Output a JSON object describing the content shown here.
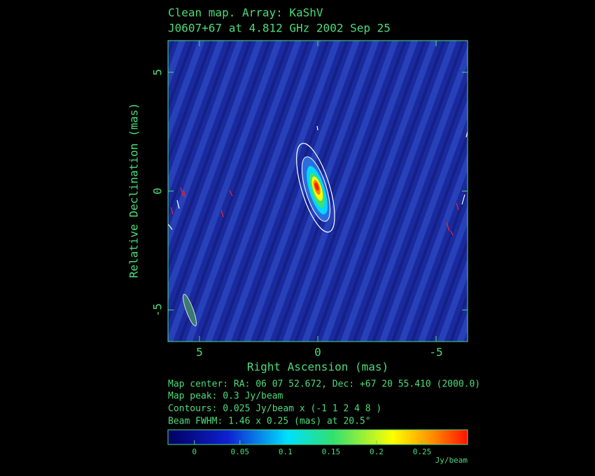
{
  "chart_data": {
    "type": "image",
    "title": [
      "Clean map.  Array: KaShV",
      "J0607+67 at 4.812 GHz 2002 Sep 25"
    ],
    "x_label": "Right Ascension  (mas)",
    "y_label": "Relative Declination  (mas)",
    "xlim": [
      6.33,
      -6.33
    ],
    "ylim": [
      -6.33,
      6.33
    ],
    "xticks": [
      5,
      0,
      -5
    ],
    "yticks": [
      5,
      0,
      -5
    ],
    "notes": [
      "Map center:  RA: 06 07 52.672,  Dec: +67 20 55.410 (2000.0)",
      "Map peak: 0.3 Jy/beam",
      "Contours: 0.025 Jy/beam x (-1 1 2 4 8 )",
      "Beam FWHM: 1.46 x 0.25 (mas) at 20.5°"
    ],
    "colorbar": {
      "lim": [
        -0.029,
        0.3
      ],
      "ticks": [
        0,
        0.05,
        0.1,
        0.15,
        0.2,
        0.25
      ],
      "label": "Jy/beam"
    }
  }
}
